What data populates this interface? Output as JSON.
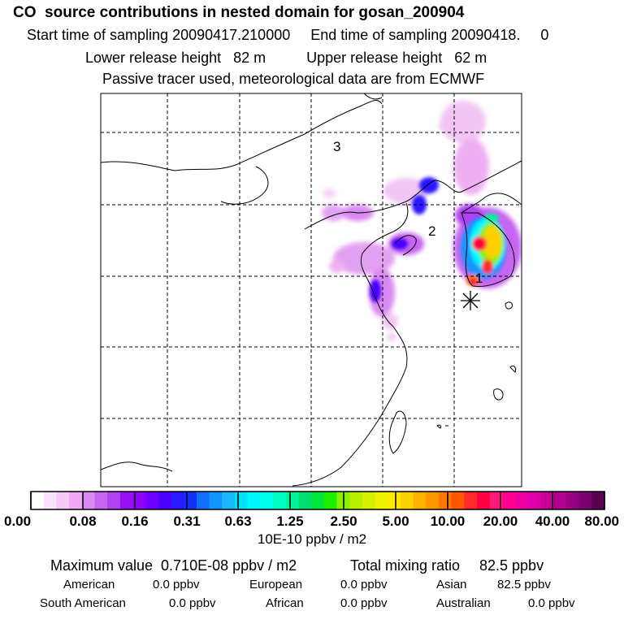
{
  "header": {
    "title": "CO  source contributions in nested domain for gosan_200904",
    "line2": "Start time of sampling 20090417.210000     End time of sampling 20090418.     0",
    "line3": "Lower release height   82 m          Upper release height   62 m",
    "line4": "Passive tracer used, meteorological data are from ECMWF"
  },
  "map": {
    "region_labels": [
      "3",
      "2",
      "1"
    ],
    "grid": "dashed lat/lon grid lines",
    "station_marker": "asterisk-icon"
  },
  "colorbar": {
    "tick_labels": [
      "0.00",
      "0.08",
      "0.16",
      "0.31",
      "0.63",
      "1.25",
      "2.50",
      "5.00",
      "10.00",
      "20.00",
      "40.00",
      "80.00"
    ],
    "colors": [
      "#ffffff",
      "#fbe3fb",
      "#f5c8f7",
      "#efaaf3",
      "#d98af2",
      "#c665f2",
      "#b040f2",
      "#9a10f2",
      "#8f00ff",
      "#6f00ff",
      "#4a00ff",
      "#2a18ff",
      "#1230ff",
      "#0f70ff",
      "#1494ff",
      "#1ab8ff",
      "#00e0ff",
      "#00f6ff",
      "#00ffe8",
      "#00ffc4",
      "#00f59a",
      "#00e070",
      "#00e83a",
      "#1cf000",
      "#8cf000",
      "#b4f000",
      "#d4f000",
      "#eef200",
      "#ffe800",
      "#ffd000",
      "#ffb200",
      "#ff9600",
      "#ff7700",
      "#ff5500",
      "#ff2a2a",
      "#ff0040",
      "#ff1a7a",
      "#ff0094",
      "#ee00a0",
      "#dd00aa",
      "#c80098",
      "#b00090",
      "#960080",
      "#7a0070",
      "#5a0050"
    ],
    "unit": "10E-10 ppbv / m2"
  },
  "stats": {
    "max_label": "Maximum value  0.710E-08 ppbv / m2",
    "total_label": "Total mixing ratio",
    "total_value": "82.5 ppbv",
    "american": {
      "label": "American",
      "value": "0.0 ppbv"
    },
    "european": {
      "label": "European",
      "value": "0.0 ppbv"
    },
    "asian": {
      "label": "Asian",
      "value": "82.5 ppbv"
    },
    "south_american": {
      "label": "South American",
      "value": "0.0 ppbv"
    },
    "african": {
      "label": "African",
      "value": "0.0 ppbv"
    },
    "australian": {
      "label": "Australian",
      "value": "0.0 ppbv"
    }
  }
}
